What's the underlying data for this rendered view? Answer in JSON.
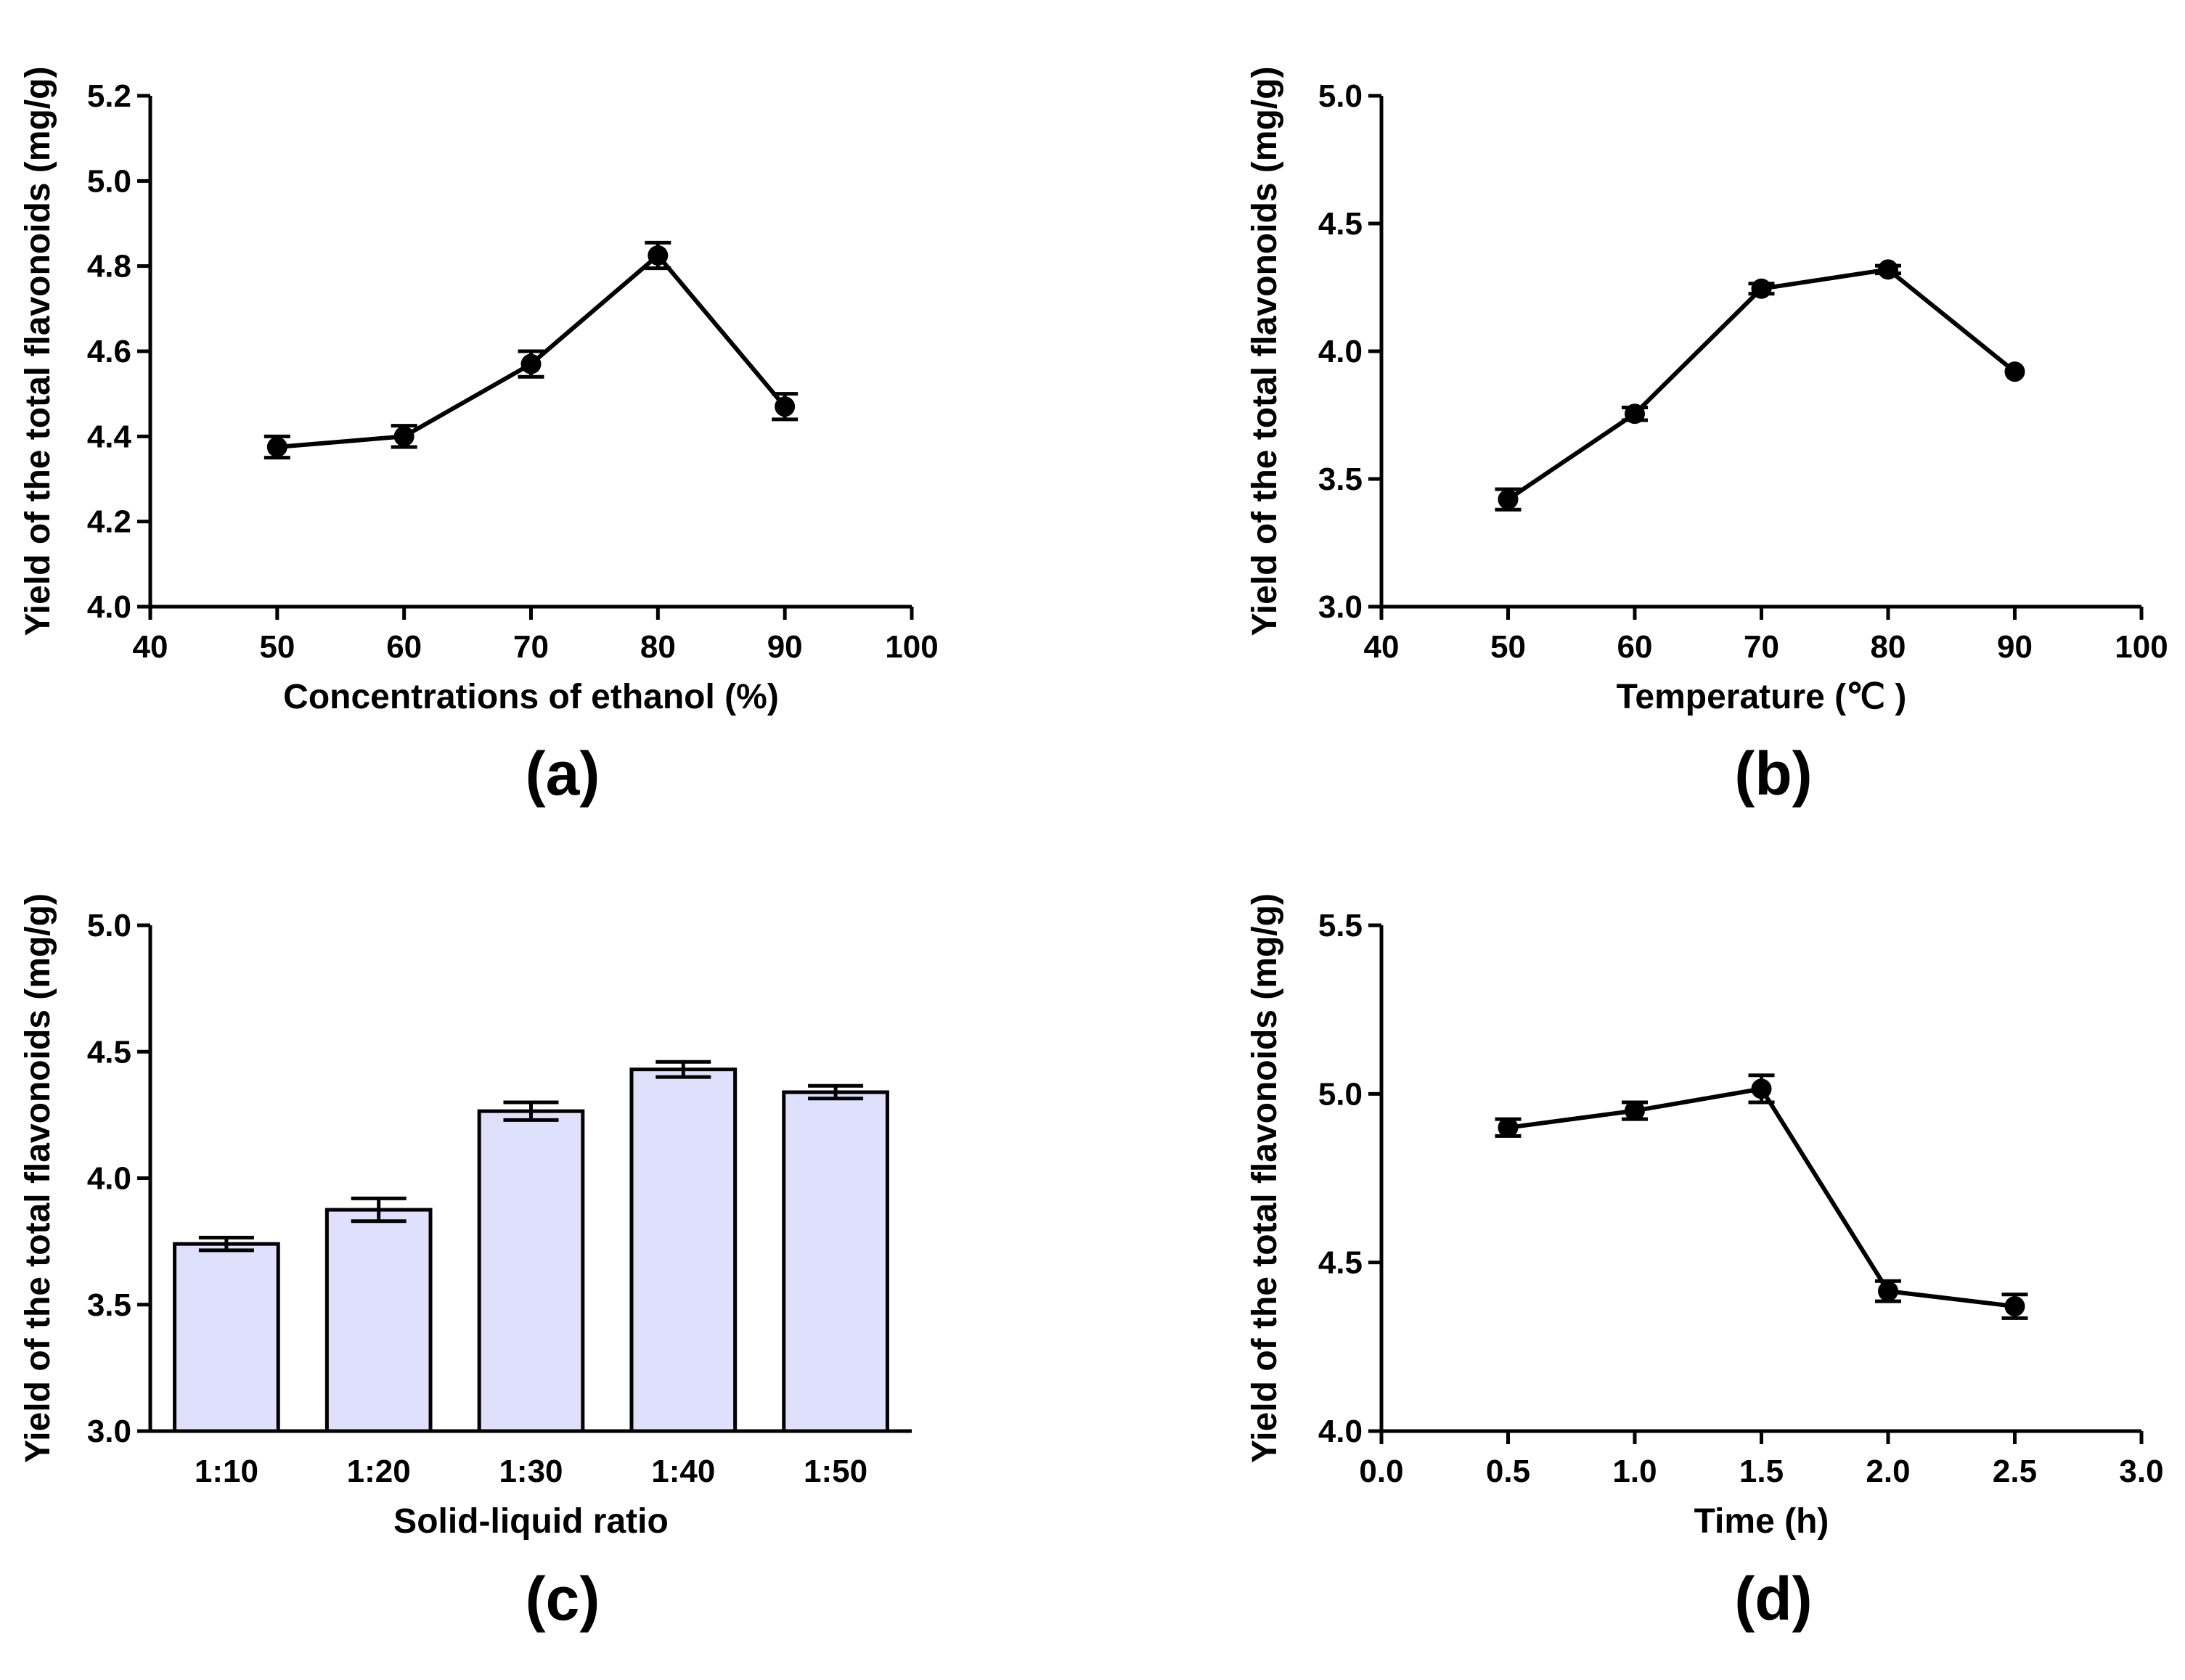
{
  "chart_data": [
    {
      "panel": "(a)",
      "type": "line",
      "xlabel": "Concentrations of ethanol (%)",
      "ylabel": "Yield of the total flavonoids (mg/g)",
      "xlim": [
        40,
        100
      ],
      "xticks": [
        "40",
        "50",
        "60",
        "70",
        "80",
        "90",
        "100"
      ],
      "ylim": [
        4.0,
        5.2
      ],
      "yticks": [
        "4.0",
        "4.2",
        "4.4",
        "4.6",
        "4.8",
        "5.0",
        "5.2"
      ],
      "x": [
        50,
        60,
        70,
        80,
        90
      ],
      "y": [
        4.375,
        4.4,
        4.57,
        4.825,
        4.47
      ],
      "err": [
        0.025,
        0.025,
        0.03,
        0.03,
        0.03
      ]
    },
    {
      "panel": "(b)",
      "type": "line",
      "xlabel": "Temperature (℃ )",
      "ylabel": "Yield of the total flavonoids (mg/g)",
      "xlim": [
        40,
        100
      ],
      "xticks": [
        "40",
        "50",
        "60",
        "70",
        "80",
        "90",
        "100"
      ],
      "ylim": [
        3.0,
        5.0
      ],
      "yticks": [
        "3.0",
        "3.5",
        "4.0",
        "4.5",
        "5.0"
      ],
      "x": [
        50,
        60,
        70,
        80,
        90
      ],
      "y": [
        3.42,
        3.755,
        4.245,
        4.32,
        3.92
      ],
      "err": [
        0.04,
        0.025,
        0.02,
        0.015,
        0.0
      ]
    },
    {
      "panel": "(c)",
      "type": "bar",
      "xlabel": "Solid-liquid ratio",
      "ylabel": "Yield of the total flavonoids (mg/g)",
      "categories": [
        "1:10",
        "1:20",
        "1:30",
        "1:40",
        "1:50"
      ],
      "values": [
        3.74,
        3.875,
        4.265,
        4.43,
        4.34
      ],
      "err": [
        0.025,
        0.045,
        0.035,
        0.03,
        0.025
      ],
      "ylim": [
        3.0,
        5.0
      ],
      "yticks": [
        "3.0",
        "3.5",
        "4.0",
        "4.5",
        "5.0"
      ],
      "bar_color": "#dfe0fc"
    },
    {
      "panel": "(d)",
      "type": "line",
      "xlabel": "Time (h)",
      "ylabel": "Yield of the total flavonoids (mg/g)",
      "xlim": [
        0.0,
        3.0
      ],
      "xticks": [
        "0.0",
        "0.5",
        "1.0",
        "1.5",
        "2.0",
        "2.5",
        "3.0"
      ],
      "ylim": [
        4.0,
        5.5
      ],
      "yticks": [
        "4.0",
        "4.5",
        "5.0",
        "5.5"
      ],
      "x": [
        0.5,
        1.0,
        1.5,
        2.0,
        2.5
      ],
      "y": [
        4.9,
        4.95,
        5.015,
        4.415,
        4.37
      ],
      "err": [
        0.025,
        0.025,
        0.04,
        0.03,
        0.035
      ]
    }
  ]
}
